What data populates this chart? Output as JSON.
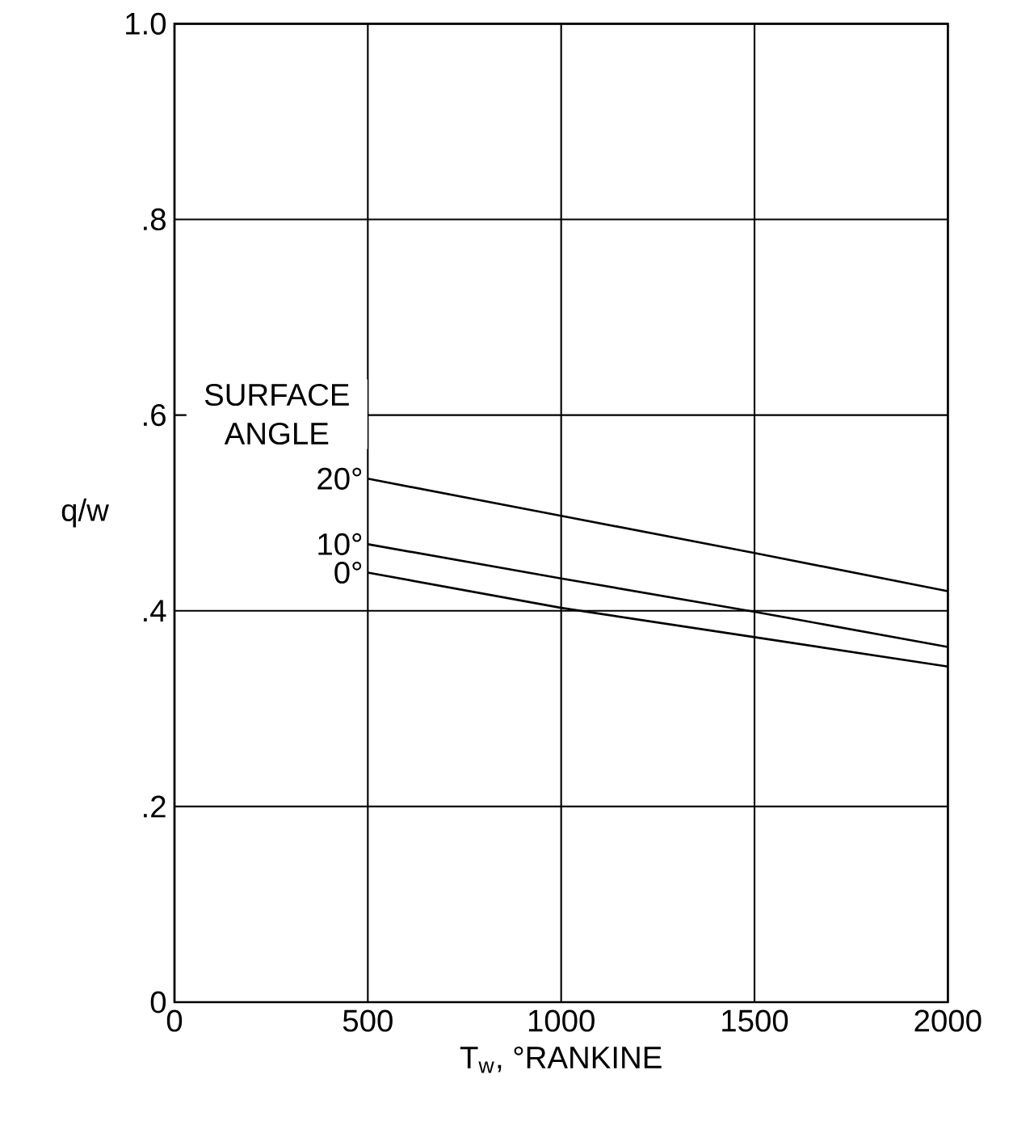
{
  "chart_data": {
    "type": "line",
    "xlabel": "T$_{w}$, °RANKINE",
    "ylabel": "q/w",
    "legend_title": "SURFACE ANGLE",
    "x": [
      500,
      1000,
      1500,
      2000
    ],
    "series": [
      {
        "name": "20°",
        "color": "#000000",
        "values": [
          0.535,
          0.497,
          0.459,
          0.42
        ]
      },
      {
        "name": "10°",
        "color": "#000000",
        "values": [
          0.468,
          0.433,
          0.399,
          0.363
        ]
      },
      {
        "name": "0°",
        "color": "#000000",
        "values": [
          0.439,
          0.403,
          0.373,
          0.343
        ]
      }
    ],
    "xlim": [
      0,
      2000
    ],
    "ylim": [
      0,
      1.0
    ],
    "xticks": [
      0,
      500,
      1000,
      1500,
      2000
    ],
    "yticks": [
      {
        "value": 0,
        "label": "0"
      },
      {
        "value": 0.2,
        "label": ".2"
      },
      {
        "value": 0.4,
        "label": ".4"
      },
      {
        "value": 0.6,
        "label": ".6"
      },
      {
        "value": 0.8,
        "label": ".8"
      },
      {
        "value": 1.0,
        "label": "1.0"
      }
    ],
    "grid": true,
    "marker": "none",
    "line_style": "solid"
  }
}
